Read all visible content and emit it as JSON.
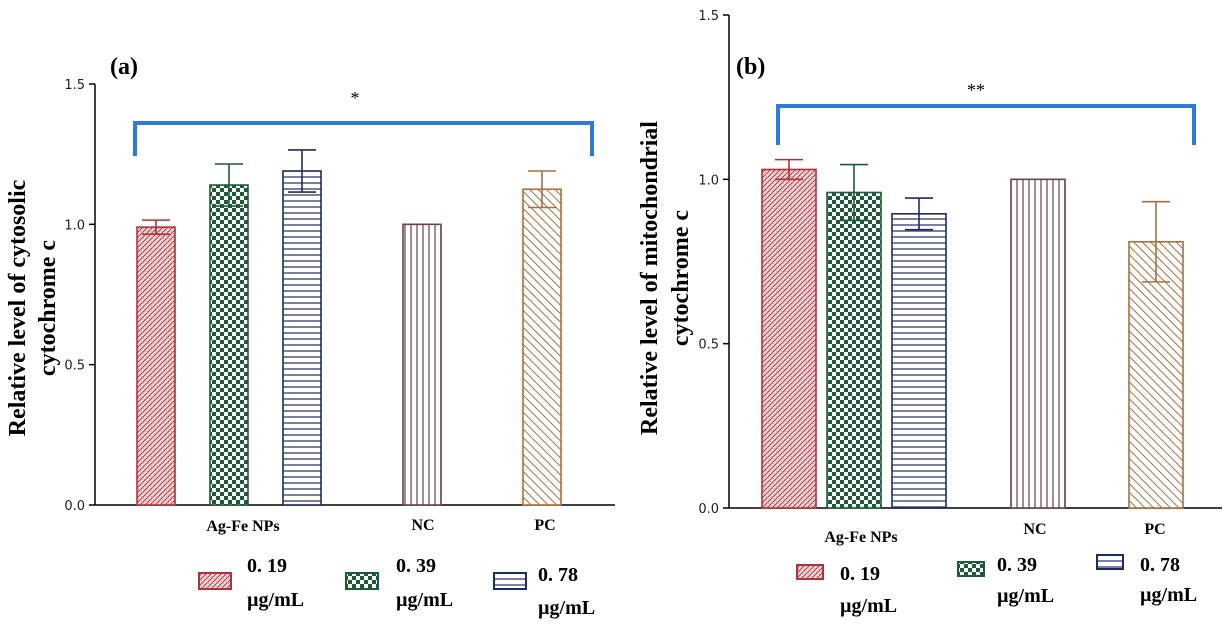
{
  "colors": {
    "red": "#b0313a",
    "green": "#1d5a37",
    "navy": "#202a63",
    "nc": "#6a4050",
    "pc": "#a8703c",
    "bracket": "#2e7bd6"
  },
  "legend": [
    {
      "value": "0. 19",
      "unit": "µg/mL",
      "color": "#b0313a",
      "pattern": "red"
    },
    {
      "value": "0. 39",
      "unit": "µg/mL",
      "color": "#1d5a37",
      "pattern": "green"
    },
    {
      "value": "0. 78",
      "unit": "µg/mL",
      "color": "#202a63",
      "pattern": "navy"
    }
  ],
  "chart_data": [
    {
      "type": "bar",
      "panel_label": "(a)",
      "ylabel_line1": "Relative level of cytosolic",
      "ylabel_line2": "cytochrome c",
      "ylim": [
        0,
        1.5
      ],
      "yticks": [
        "0.0",
        "0.5",
        "1.0",
        "1.5"
      ],
      "group_labels": [
        "Ag-Fe NPs",
        "NC",
        "PC"
      ],
      "significance": "*",
      "bars": [
        {
          "name": "0.19 µg/mL",
          "value": 0.99,
          "error": 0.025
        },
        {
          "name": "0.39 µg/mL",
          "value": 1.14,
          "error": 0.075
        },
        {
          "name": "0.78 µg/mL",
          "value": 1.19,
          "error": 0.075
        },
        {
          "name": "NC",
          "value": 1.0,
          "error": 0
        },
        {
          "name": "PC",
          "value": 1.125,
          "error": 0.065
        }
      ]
    },
    {
      "type": "bar",
      "panel_label": "(b)",
      "ylabel_line1": "Relative level of mitochondrial",
      "ylabel_line2": "cytochrome c",
      "ylim": [
        0,
        1.5
      ],
      "yticks": [
        "0.0",
        "0.5",
        "1.0",
        "1.5"
      ],
      "group_labels": [
        "Ag-Fe NPs",
        "NC",
        "PC"
      ],
      "significance": "**",
      "bars": [
        {
          "name": "0.19 µg/mL",
          "value": 1.03,
          "error": 0.03
        },
        {
          "name": "0.39 µg/mL",
          "value": 0.96,
          "error": 0.085
        },
        {
          "name": "0.78 µg/mL",
          "value": 0.895,
          "error": 0.048
        },
        {
          "name": "NC",
          "value": 1.0,
          "error": 0
        },
        {
          "name": "PC",
          "value": 0.81,
          "error": 0.122
        }
      ]
    }
  ]
}
